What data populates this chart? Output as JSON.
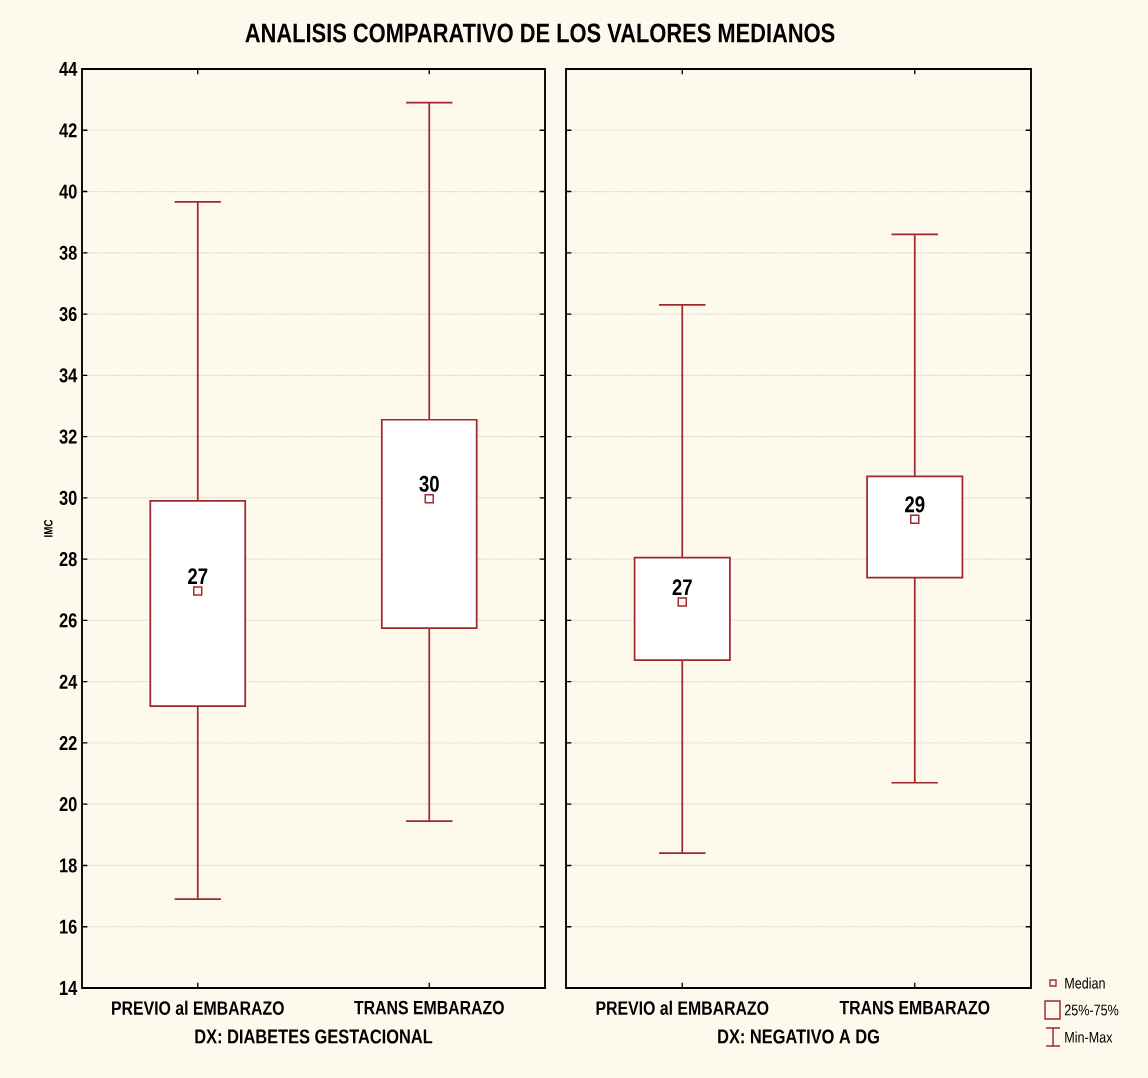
{
  "chart_data": [
    {
      "type": "box",
      "title": "ANALISIS COMPARATIVO DE LOS VALORES MEDIANOS",
      "ylabel": "IMC",
      "xlabel": "DX: DIABETES GESTACIONAL",
      "categories": [
        "PREVIO al EMBARAZO",
        "TRANS EMBARAZO"
      ],
      "color": "#a0282d",
      "boxes": [
        {
          "low": 16.9,
          "q1": 23.2,
          "median": 26.96,
          "q3": 29.9,
          "high": 39.66
        },
        {
          "low": 19.45,
          "q1": 25.75,
          "median": 29.97,
          "q3": 32.55,
          "high": 42.9
        }
      ],
      "ylim": [
        14,
        44
      ],
      "yticks": [
        14,
        16,
        18,
        20,
        22,
        24,
        26,
        28,
        30,
        32,
        34,
        36,
        38,
        40,
        42,
        44
      ],
      "grid": "y",
      "annotations": [
        {
          "text": "27",
          "x": "PREVIO al EMBARAZO",
          "y": 26.96
        },
        {
          "text": "30",
          "x": "TRANS EMBARAZO",
          "y": 29.97
        }
      ]
    },
    {
      "type": "box",
      "xlabel": "DX: NEGATIVO A DG",
      "categories": [
        "PREVIO al EMBARAZO",
        "TRANS EMBARAZO"
      ],
      "color": "#a0282d",
      "boxes": [
        {
          "low": 18.4,
          "q1": 24.7,
          "median": 26.6,
          "q3": 28.05,
          "high": 36.3
        },
        {
          "low": 20.7,
          "q1": 27.4,
          "median": 29.3,
          "q3": 30.7,
          "high": 38.6
        }
      ],
      "ylim": [
        14,
        44
      ],
      "yticks": [
        14,
        16,
        18,
        20,
        22,
        24,
        26,
        28,
        30,
        32,
        34,
        36,
        38,
        40,
        42,
        44
      ],
      "grid": "y",
      "tick_labels": "x",
      "annotations": [
        {
          "text": "27",
          "x": "PREVIO al EMBARAZO",
          "y": 26.6
        },
        {
          "text": "29",
          "x": "TRANS EMBARAZO",
          "y": 29.3
        },
        "Median",
        "25%-75%",
        "Min-Max"
      ]
    }
  ]
}
